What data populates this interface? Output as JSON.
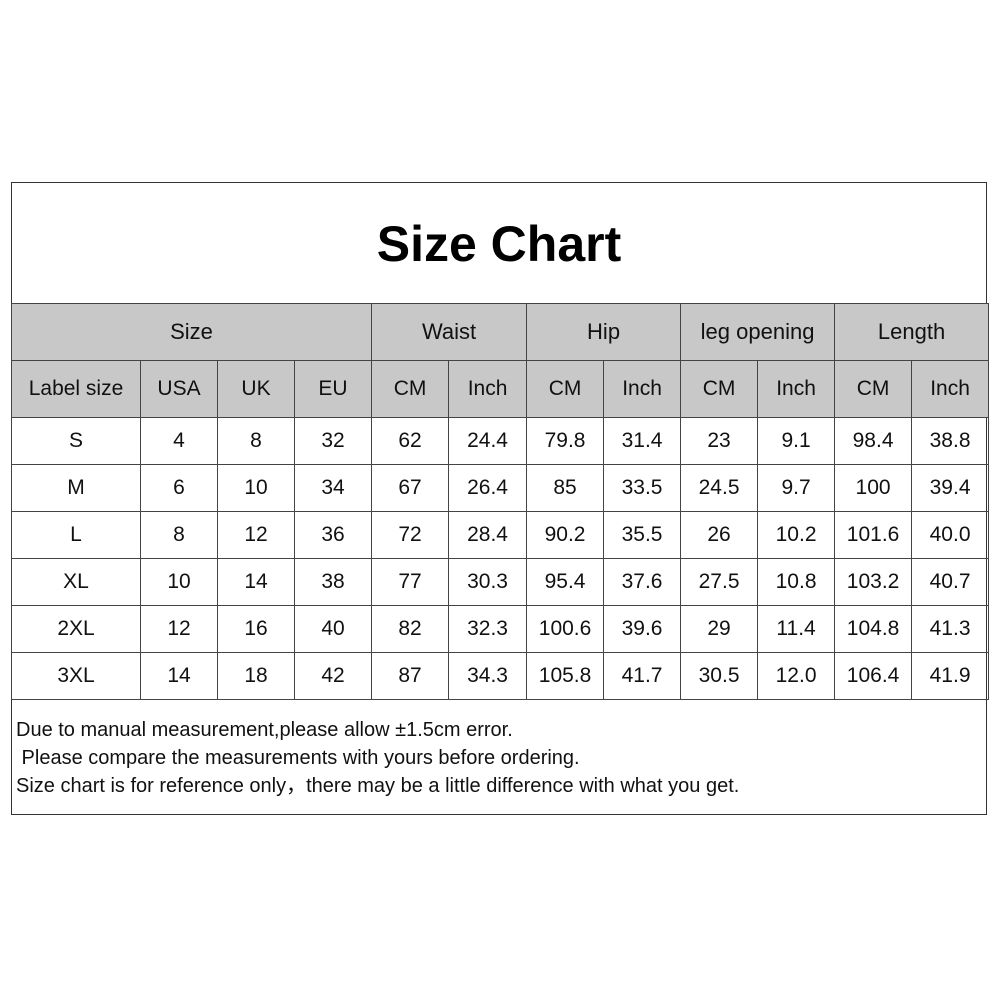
{
  "title": "Size Chart",
  "groups": [
    "Size",
    "Waist",
    "Hip",
    "leg opening",
    "Length"
  ],
  "subheaders": [
    "Label size",
    "USA",
    "UK",
    "EU",
    "CM",
    "Inch",
    "CM",
    "Inch",
    "CM",
    "Inch",
    "CM",
    "Inch"
  ],
  "rows": [
    [
      "S",
      "4",
      "8",
      "32",
      "62",
      "24.4",
      "79.8",
      "31.4",
      "23",
      "9.1",
      "98.4",
      "38.8"
    ],
    [
      "M",
      "6",
      "10",
      "34",
      "67",
      "26.4",
      "85",
      "33.5",
      "24.5",
      "9.7",
      "100",
      "39.4"
    ],
    [
      "L",
      "8",
      "12",
      "36",
      "72",
      "28.4",
      "90.2",
      "35.5",
      "26",
      "10.2",
      "101.6",
      "40.0"
    ],
    [
      "XL",
      "10",
      "14",
      "38",
      "77",
      "30.3",
      "95.4",
      "37.6",
      "27.5",
      "10.8",
      "103.2",
      "40.7"
    ],
    [
      "2XL",
      "12",
      "16",
      "40",
      "82",
      "32.3",
      "100.6",
      "39.6",
      "29",
      "11.4",
      "104.8",
      "41.3"
    ],
    [
      "3XL",
      "14",
      "18",
      "42",
      "87",
      "34.3",
      "105.8",
      "41.7",
      "30.5",
      "12.0",
      "106.4",
      "41.9"
    ]
  ],
  "notes": [
    "Due to manual measurement,please allow ±1.5cm error.",
    " Please compare the measurements with yours before ordering.",
    "Size chart is for reference only，there may be a little difference with what you get."
  ],
  "colors": {
    "header_bg": "#c8c8c8",
    "border": "#444444"
  }
}
